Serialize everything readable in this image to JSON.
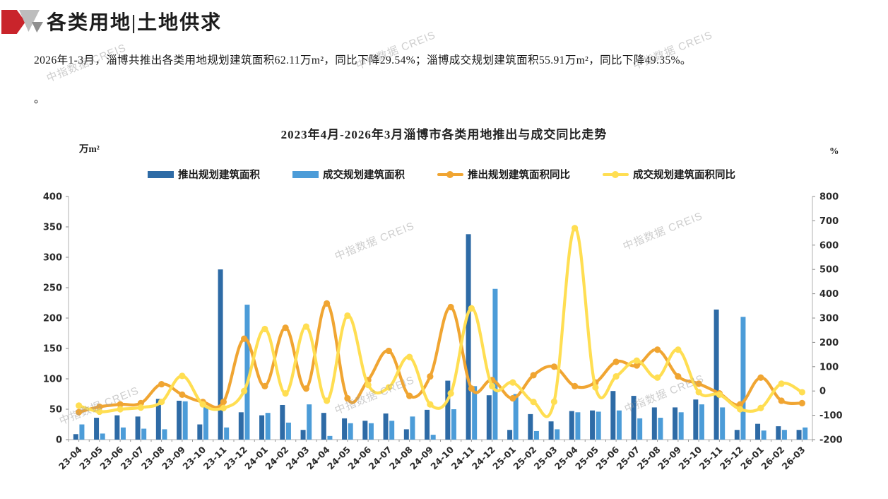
{
  "page": {
    "header": {
      "title": "各类用地|土地供求"
    },
    "summary_line1": "2026年1-3月，淄博共推出各类用地规划建筑面积62.11万m²，同比下降29.54%；淄博成交规划建筑面积55.91万m²，同比下降49.35%。",
    "summary_line2": "。",
    "watermark": "中指数据 CREIS"
  },
  "chart_data": {
    "type": "bar+line combo",
    "title": "2023年4月-2026年3月淄博市各类用地推出与成交同比走势",
    "legend_position": "top",
    "grid": false,
    "left_axis": {
      "label": "万m²",
      "min": 0,
      "max": 400,
      "step": 50
    },
    "right_axis": {
      "label": "%",
      "min": -200,
      "max": 800,
      "step": 100
    },
    "categories": [
      "23-04",
      "23-05",
      "23-06",
      "23-07",
      "23-08",
      "23-09",
      "23-10",
      "23-11",
      "23-12",
      "24-01",
      "24-02",
      "24-03",
      "24-04",
      "24-05",
      "24-06",
      "24-07",
      "24-08",
      "24-09",
      "24-10",
      "24-11",
      "24-12",
      "25-01",
      "25-02",
      "25-03",
      "25-04",
      "25-05",
      "25-06",
      "25-07",
      "25-08",
      "25-09",
      "25-10",
      "25-11",
      "25-12",
      "26-01",
      "26-02",
      "26-03"
    ],
    "series": [
      {
        "name": "推出规划建筑面积",
        "type": "bar",
        "axis": "left",
        "color": "#2e6ba6",
        "values": [
          9,
          36,
          40,
          38,
          67,
          64,
          25,
          280,
          45,
          40,
          57,
          16,
          44,
          35,
          31,
          43,
          17,
          49,
          97,
          338,
          73,
          16,
          42,
          30,
          47,
          48,
          80,
          72,
          53,
          53,
          66,
          214,
          16,
          26,
          22,
          16
        ]
      },
      {
        "name": "成交规划建筑面积",
        "type": "bar",
        "axis": "left",
        "color": "#4c9cd8",
        "values": [
          25,
          10,
          20,
          18,
          17,
          63,
          55,
          20,
          222,
          44,
          28,
          58,
          6,
          27,
          27,
          31,
          38,
          8,
          50,
          88,
          248,
          75,
          14,
          17,
          45,
          46,
          48,
          35,
          36,
          45,
          58,
          53,
          202,
          15,
          16,
          20
        ]
      },
      {
        "name": "推出规划建筑面积同比",
        "type": "line",
        "axis": "right",
        "color": "#f0a532",
        "values": [
          -87,
          -65,
          -55,
          -50,
          28,
          -15,
          -45,
          -45,
          215,
          20,
          260,
          10,
          360,
          -30,
          45,
          165,
          -20,
          60,
          345,
          10,
          45,
          -30,
          65,
          100,
          20,
          35,
          120,
          105,
          170,
          60,
          30,
          -10,
          -55,
          55,
          -40,
          -50
        ]
      },
      {
        "name": "成交规划建筑面积同比",
        "type": "line",
        "axis": "right",
        "color": "#ffde52",
        "values": [
          -60,
          -85,
          -75,
          -68,
          -45,
          62,
          -55,
          -70,
          0,
          255,
          -10,
          265,
          -40,
          310,
          25,
          15,
          140,
          -55,
          -10,
          340,
          20,
          35,
          -45,
          -44,
          670,
          15,
          60,
          125,
          55,
          170,
          -5,
          -15,
          -75,
          -70,
          30,
          -5
        ]
      }
    ]
  }
}
